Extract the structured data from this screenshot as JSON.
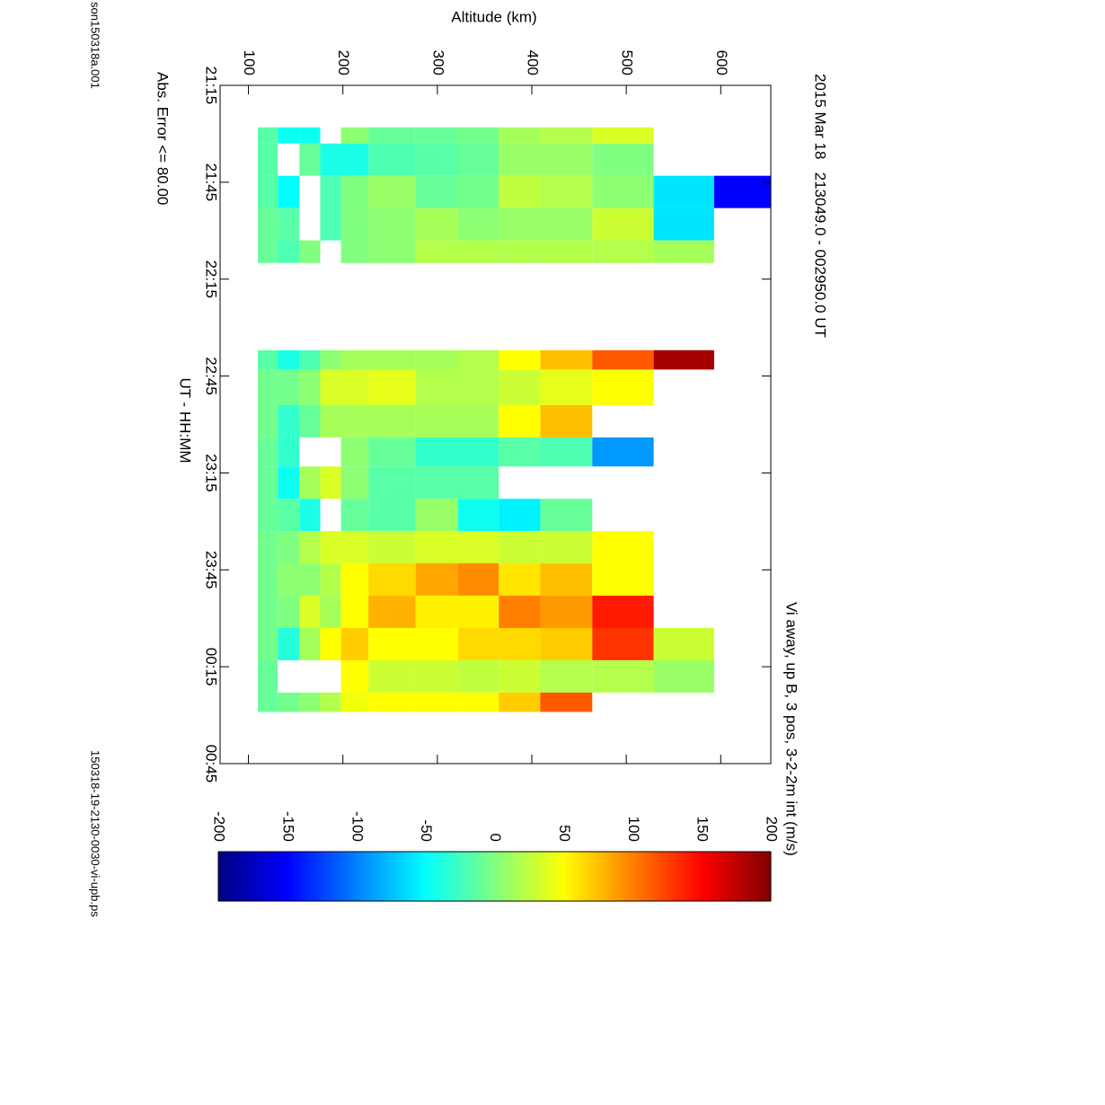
{
  "chart_data": {
    "type": "heatmap",
    "title": "2015 Mar 18   213049.0 - 002950.0 UT",
    "file_label": "son150318a.001",
    "plot_file": "150318-19-2130-0030-vi-upb.ps",
    "x_label": "UT - HH:MM",
    "y_label": "Altitude (km)",
    "note": "Abs. Error <= 80.00",
    "colorbar_label": "Vi away, up B, 3 pos, 3-2-2m int (m/s)",
    "colormap": "jet",
    "xlim": [
      1275,
      1485
    ],
    "xticks": [
      {
        "value": 1275,
        "label": "21:15"
      },
      {
        "value": 1305,
        "label": "21:45"
      },
      {
        "value": 1335,
        "label": "22:15"
      },
      {
        "value": 1365,
        "label": "22:45"
      },
      {
        "value": 1395,
        "label": "23:15"
      },
      {
        "value": 1425,
        "label": "23:45"
      },
      {
        "value": 1455,
        "label": "00:15"
      },
      {
        "value": 1485,
        "label": "00:45"
      }
    ],
    "ylim": [
      70,
      653
    ],
    "yticks": [
      100,
      200,
      300,
      400,
      500,
      600
    ],
    "zlim": [
      -200,
      200
    ],
    "zticks": [
      -200,
      -150,
      -100,
      -50,
      0,
      50,
      100,
      150,
      200
    ],
    "x_bins": [
      1288,
      1293,
      1303,
      1313,
      1323,
      1330,
      1357,
      1363,
      1374,
      1384,
      1393,
      1403,
      1413,
      1423,
      1433,
      1443,
      1453,
      1463,
      1469
    ],
    "y_bins": [
      110,
      131,
      154,
      176,
      198,
      227,
      277,
      322,
      365,
      409,
      464,
      529,
      593,
      653
    ],
    "values": [
      [
        -15,
        -45,
        -45,
        null,
        5,
        -10,
        -10,
        -5,
        15,
        20,
        35,
        null,
        null
      ],
      [
        -15,
        null,
        -10,
        -40,
        -40,
        -20,
        -15,
        -10,
        10,
        10,
        0,
        null,
        null
      ],
      [
        -15,
        -50,
        null,
        -20,
        0,
        10,
        -10,
        -5,
        25,
        20,
        5,
        -60,
        -150
      ],
      [
        -10,
        -15,
        null,
        -20,
        0,
        5,
        15,
        5,
        10,
        10,
        30,
        -60,
        null
      ],
      [
        -10,
        -20,
        0,
        null,
        0,
        5,
        20,
        20,
        20,
        20,
        20,
        15,
        null
      ],
      [
        null,
        null,
        null,
        null,
        null,
        null,
        null,
        null,
        null,
        null,
        null,
        null,
        null
      ],
      [
        -15,
        -40,
        -20,
        5,
        15,
        15,
        15,
        20,
        50,
        75,
        115,
        185,
        null
      ],
      [
        -5,
        -5,
        5,
        35,
        35,
        40,
        20,
        20,
        30,
        40,
        50,
        null,
        null
      ],
      [
        -5,
        -30,
        -10,
        15,
        15,
        15,
        15,
        15,
        50,
        75,
        null,
        null,
        null
      ],
      [
        -10,
        -30,
        null,
        null,
        5,
        -10,
        -30,
        -30,
        -15,
        -20,
        -90,
        null,
        null
      ],
      [
        -10,
        -45,
        15,
        35,
        5,
        -15,
        -15,
        -15,
        null,
        null,
        null,
        null,
        null
      ],
      [
        -10,
        -15,
        -40,
        null,
        -10,
        -15,
        10,
        -45,
        -55,
        -10,
        null,
        null,
        null
      ],
      [
        -5,
        0,
        20,
        35,
        35,
        30,
        35,
        35,
        30,
        30,
        50,
        null,
        null
      ],
      [
        -5,
        5,
        5,
        20,
        50,
        65,
        85,
        95,
        60,
        75,
        50,
        null,
        null
      ],
      [
        -5,
        0,
        35,
        15,
        50,
        80,
        55,
        55,
        100,
        90,
        140,
        null,
        null
      ],
      [
        -5,
        -35,
        15,
        50,
        70,
        50,
        50,
        65,
        65,
        70,
        130,
        30,
        null
      ],
      [
        -10,
        null,
        null,
        null,
        50,
        30,
        30,
        25,
        30,
        20,
        20,
        10,
        null
      ],
      [
        -10,
        -5,
        5,
        20,
        45,
        50,
        50,
        50,
        70,
        115,
        null,
        null,
        null
      ]
    ]
  }
}
